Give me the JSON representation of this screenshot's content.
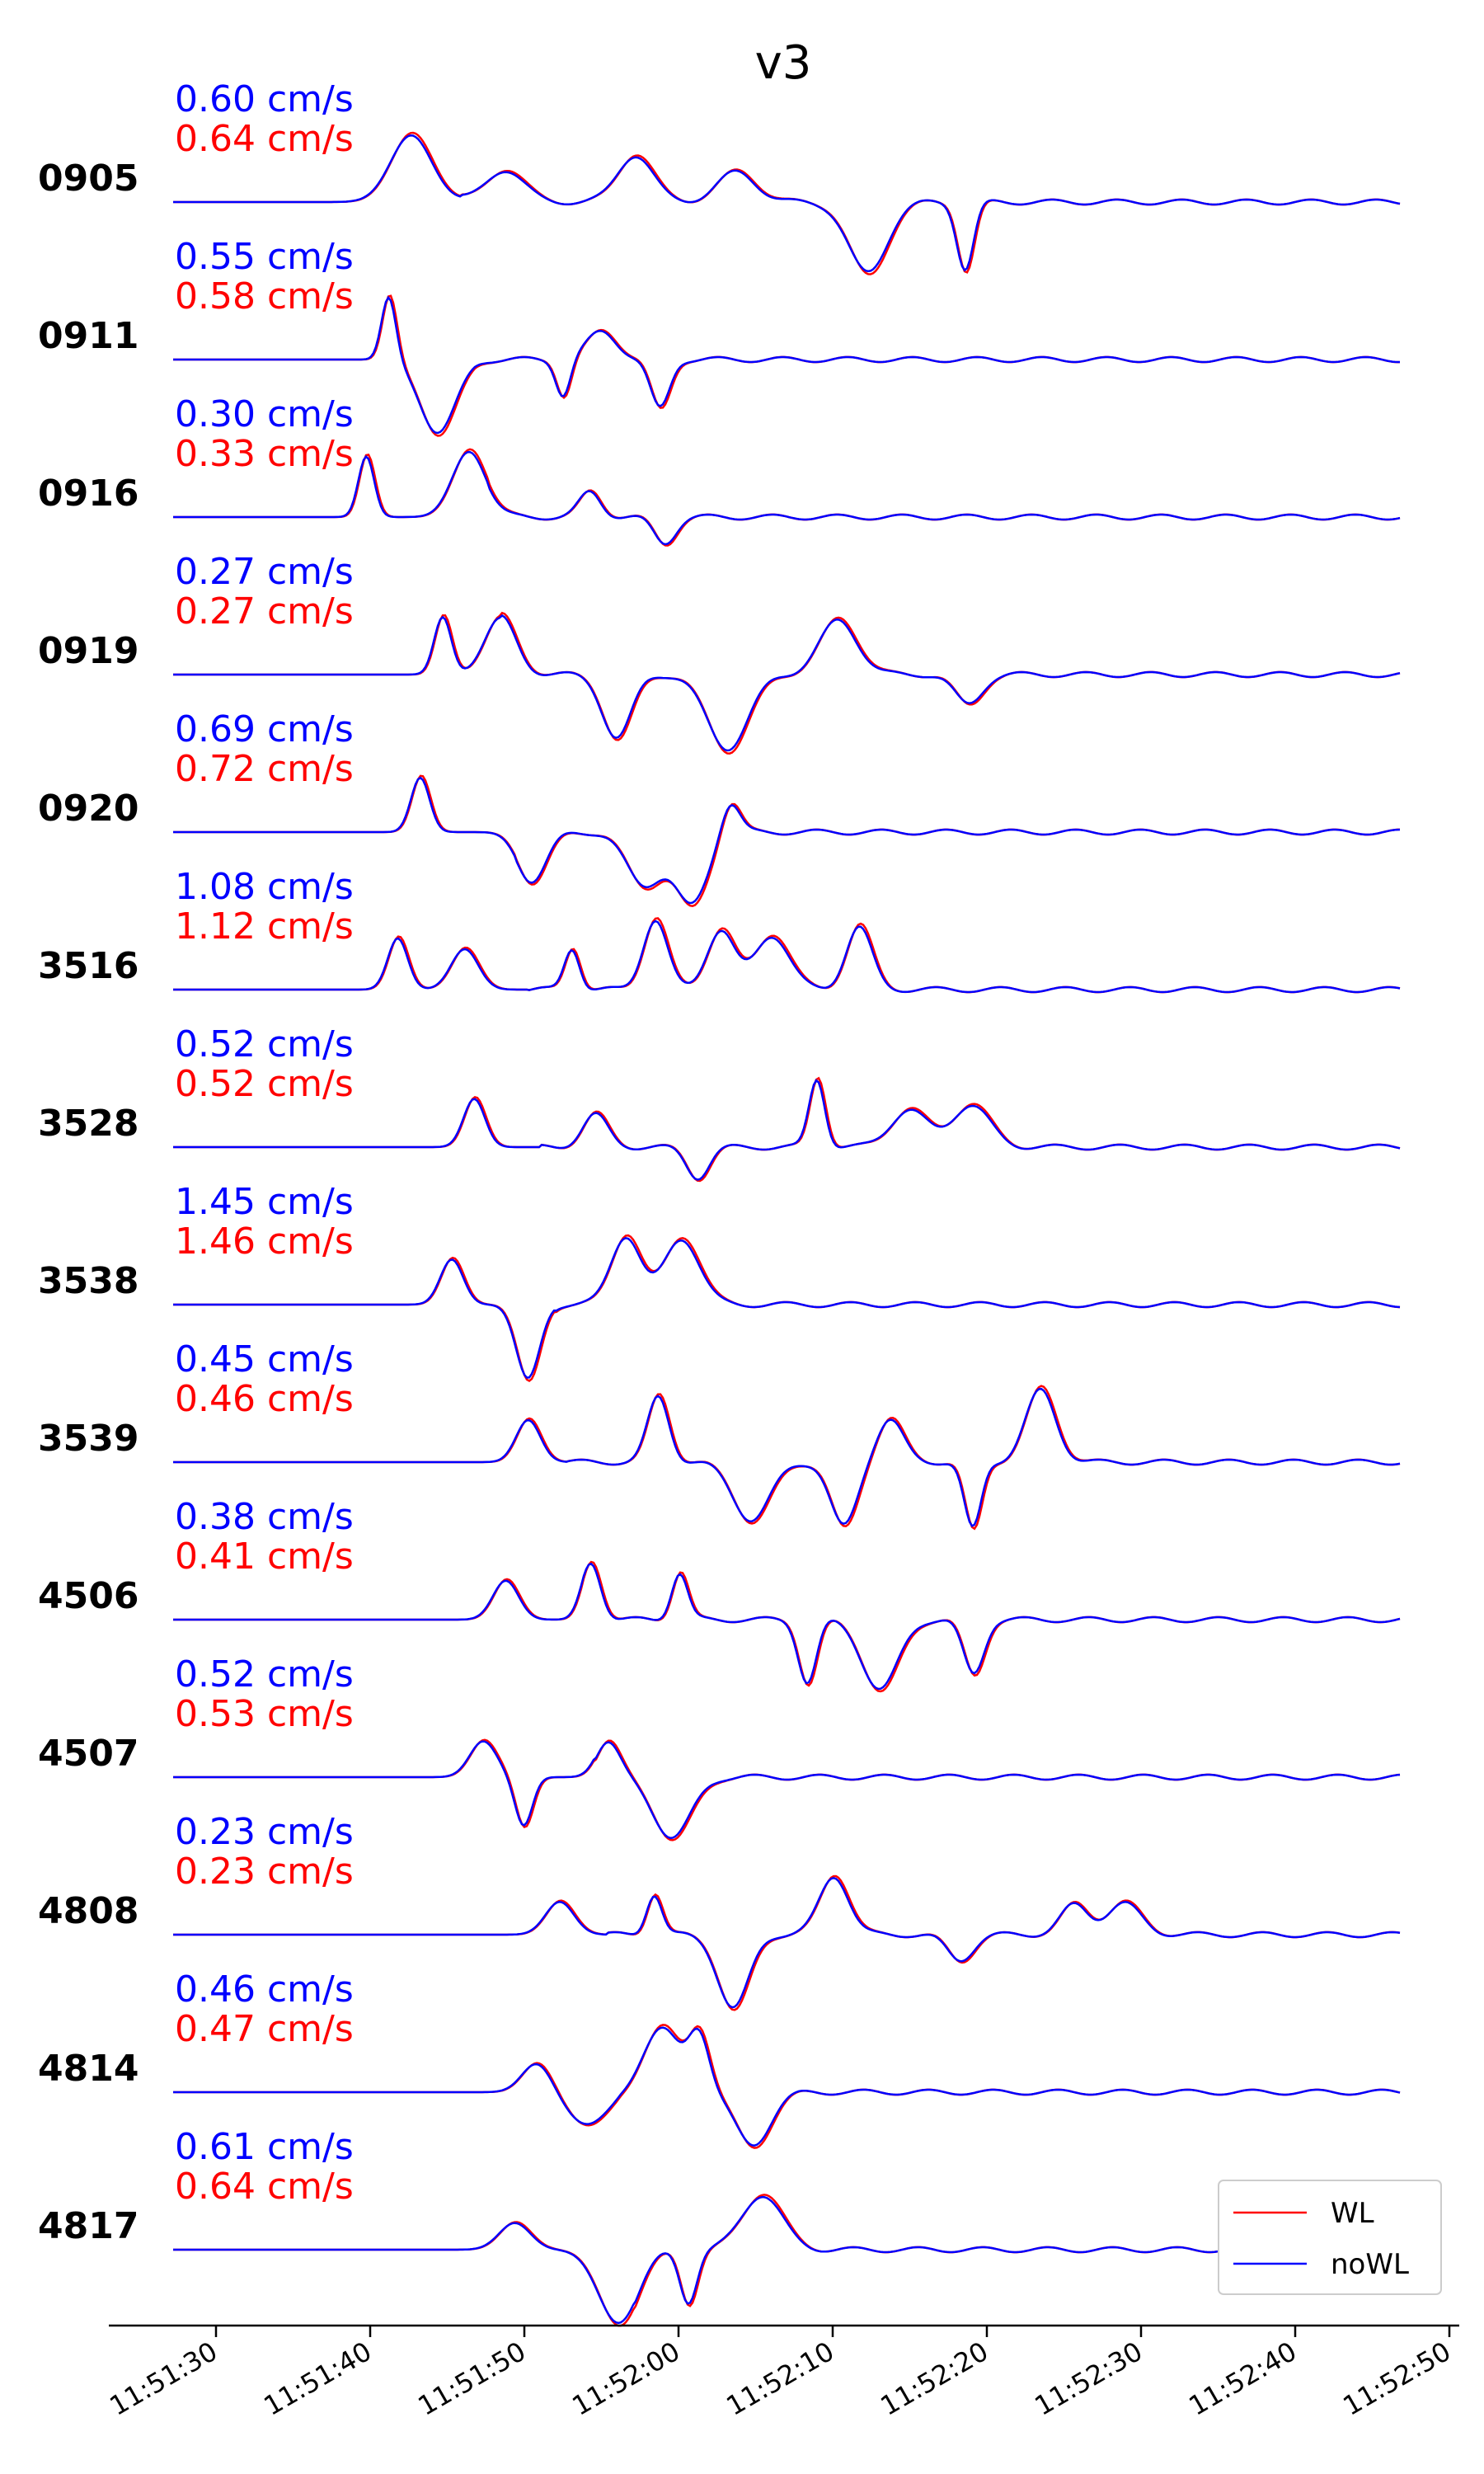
{
  "chart_data": {
    "type": "line",
    "title": "v3",
    "xlabel": "",
    "ylabel": "",
    "legend": {
      "placement": "bottom-right",
      "entries": [
        "WL",
        "noWL"
      ]
    },
    "series_colors": {
      "WL": "#ff0000",
      "noWL": "#0000ff"
    },
    "x_ticks": [
      "11:51:30",
      "11:51:40",
      "11:51:50",
      "11:52:00",
      "11:52:10",
      "11:52:20",
      "11:52:30",
      "11:52:40",
      "11:52:50"
    ],
    "grid": false,
    "stations": [
      {
        "name": "0905",
        "amp_noWL": "0.60 cm/s",
        "amp_WL": "0.64 cm/s"
      },
      {
        "name": "0911",
        "amp_noWL": "0.55 cm/s",
        "amp_WL": "0.58 cm/s"
      },
      {
        "name": "0916",
        "amp_noWL": "0.30 cm/s",
        "amp_WL": "0.33 cm/s"
      },
      {
        "name": "0919",
        "amp_noWL": "0.27 cm/s",
        "amp_WL": "0.27 cm/s"
      },
      {
        "name": "0920",
        "amp_noWL": "0.69 cm/s",
        "amp_WL": "0.72 cm/s"
      },
      {
        "name": "3516",
        "amp_noWL": "1.08 cm/s",
        "amp_WL": "1.12 cm/s"
      },
      {
        "name": "3528",
        "amp_noWL": "0.52 cm/s",
        "amp_WL": "0.52 cm/s"
      },
      {
        "name": "3538",
        "amp_noWL": "1.45 cm/s",
        "amp_WL": "1.46 cm/s"
      },
      {
        "name": "3539",
        "amp_noWL": "0.45 cm/s",
        "amp_WL": "0.46 cm/s"
      },
      {
        "name": "4506",
        "amp_noWL": "0.38 cm/s",
        "amp_WL": "0.41 cm/s"
      },
      {
        "name": "4507",
        "amp_noWL": "0.52 cm/s",
        "amp_WL": "0.53 cm/s"
      },
      {
        "name": "4808",
        "amp_noWL": "0.23 cm/s",
        "amp_WL": "0.23 cm/s"
      },
      {
        "name": "4814",
        "amp_noWL": "0.46 cm/s",
        "amp_WL": "0.47 cm/s"
      },
      {
        "name": "4817",
        "amp_noWL": "0.61 cm/s",
        "amp_WL": "0.64 cm/s"
      }
    ]
  }
}
